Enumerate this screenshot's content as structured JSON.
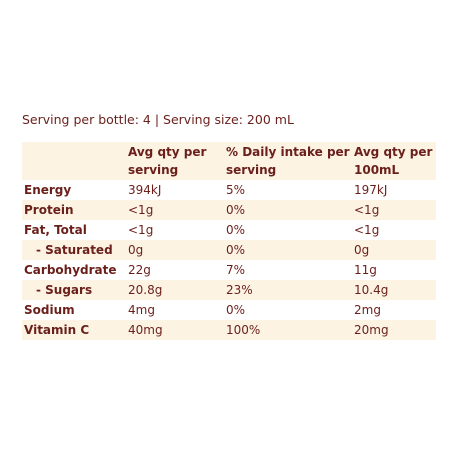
{
  "serving": "Serving per bottle: 4 | Serving size: 200 mL",
  "table": {
    "header": [
      "Avg qty per serving",
      "% Daily intake per serving",
      "Avg qty per 100mL"
    ],
    "rows": [
      [
        "Energy",
        "394kJ",
        "5%",
        "197kJ"
      ],
      [
        "Protein",
        "<1g",
        "0%",
        "<1g"
      ],
      [
        "Fat, Total",
        "<1g",
        "0%",
        "<1g"
      ],
      [
        "- Saturated",
        "0g",
        "0%",
        "0g"
      ],
      [
        "Carbohydrate",
        "22g",
        "7%",
        "11g"
      ],
      [
        "- Sugars",
        "20.8g",
        "23%",
        "10.4g"
      ],
      [
        "Sodium",
        "4mg",
        "0%",
        "2mg"
      ],
      [
        "Vitamin C",
        "40mg",
        "100%",
        "20mg"
      ]
    ]
  }
}
